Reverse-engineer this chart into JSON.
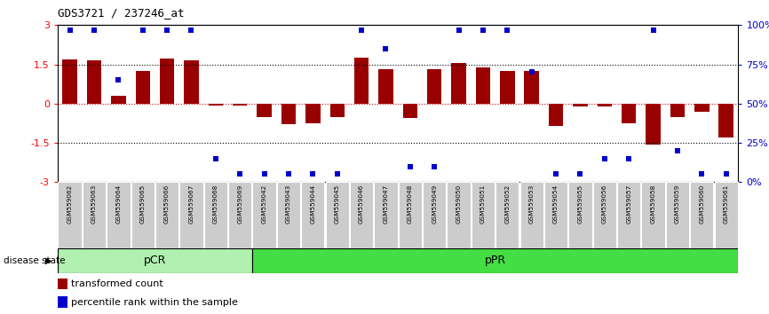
{
  "title": "GDS3721 / 237246_at",
  "labels": [
    "GSM559062",
    "GSM559063",
    "GSM559064",
    "GSM559065",
    "GSM559066",
    "GSM559067",
    "GSM559068",
    "GSM559069",
    "GSM559042",
    "GSM559043",
    "GSM559044",
    "GSM559045",
    "GSM559046",
    "GSM559047",
    "GSM559048",
    "GSM559049",
    "GSM559050",
    "GSM559051",
    "GSM559052",
    "GSM559053",
    "GSM559054",
    "GSM559055",
    "GSM559056",
    "GSM559057",
    "GSM559058",
    "GSM559059",
    "GSM559060",
    "GSM559061"
  ],
  "bar_values": [
    1.68,
    1.65,
    0.3,
    1.25,
    1.72,
    1.65,
    -0.08,
    -0.08,
    -0.5,
    -0.8,
    -0.75,
    -0.5,
    1.75,
    1.3,
    -0.55,
    1.3,
    1.55,
    1.4,
    1.25,
    1.25,
    -0.85,
    -0.1,
    -0.1,
    -0.75,
    -1.55,
    -0.5,
    -0.3,
    -1.3
  ],
  "blue_values": [
    97,
    97,
    65,
    97,
    97,
    97,
    15,
    5,
    5,
    5,
    5,
    5,
    97,
    85,
    10,
    10,
    97,
    97,
    97,
    70,
    5,
    5,
    15,
    15,
    97,
    20,
    5,
    5
  ],
  "pCR_count": 8,
  "pPR_count": 20,
  "ylim_left": [
    -3,
    3
  ],
  "ylim_right": [
    0,
    100
  ],
  "bar_color": "#990000",
  "blue_color": "#0000cc",
  "pCR_color": "#b0f0b0",
  "pPR_color": "#44dd44",
  "label_box_color": "#cccccc",
  "zero_line_color": "#cc0000"
}
